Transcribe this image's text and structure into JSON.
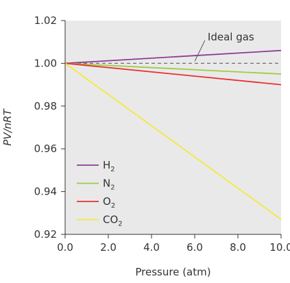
{
  "chart_data": {
    "type": "line",
    "xlabel": "Pressure (atm)",
    "ylabel": "PV/nRT",
    "xlim": [
      0,
      10
    ],
    "ylim": [
      0.92,
      1.02
    ],
    "xticks": [
      0,
      2,
      4,
      6,
      8,
      10
    ],
    "xtick_labels": [
      "0.0",
      "2.0",
      "4.0",
      "6.0",
      "8.0",
      "10.0"
    ],
    "yticks": [
      0.92,
      0.94,
      0.96,
      0.98,
      1.0,
      1.02
    ],
    "ytick_labels": [
      "0.92",
      "0.94",
      "0.96",
      "0.98",
      "1.00",
      "1.02"
    ],
    "grid": false,
    "legend": "bottom-left",
    "plot_background": "#e9e9ea",
    "series": [
      {
        "name": "H",
        "subscript": "2",
        "color": "#8e3a93",
        "style": "solid",
        "x": [
          0,
          10
        ],
        "y": [
          1.0,
          1.006
        ]
      },
      {
        "name": "N",
        "subscript": "2",
        "color": "#9ccd3c",
        "style": "solid",
        "x": [
          0,
          10
        ],
        "y": [
          1.0,
          0.995
        ]
      },
      {
        "name": "O",
        "subscript": "2",
        "color": "#ea2f2f",
        "style": "solid",
        "x": [
          0,
          10
        ],
        "y": [
          1.0,
          0.99
        ]
      },
      {
        "name": "CO",
        "subscript": "2",
        "color": "#f4e93b",
        "style": "solid",
        "x": [
          0,
          10
        ],
        "y": [
          1.0,
          0.927
        ]
      }
    ],
    "reference_line": {
      "color": "#6d6d6d",
      "style": "dashed",
      "x": [
        0,
        10
      ],
      "y": [
        1.0,
        1.0
      ]
    },
    "annotations": [
      {
        "text": "Ideal gas",
        "x": 6.6,
        "y": 1.012,
        "pointer_to": {
          "x": 6.0,
          "y": 1.0
        }
      }
    ]
  }
}
